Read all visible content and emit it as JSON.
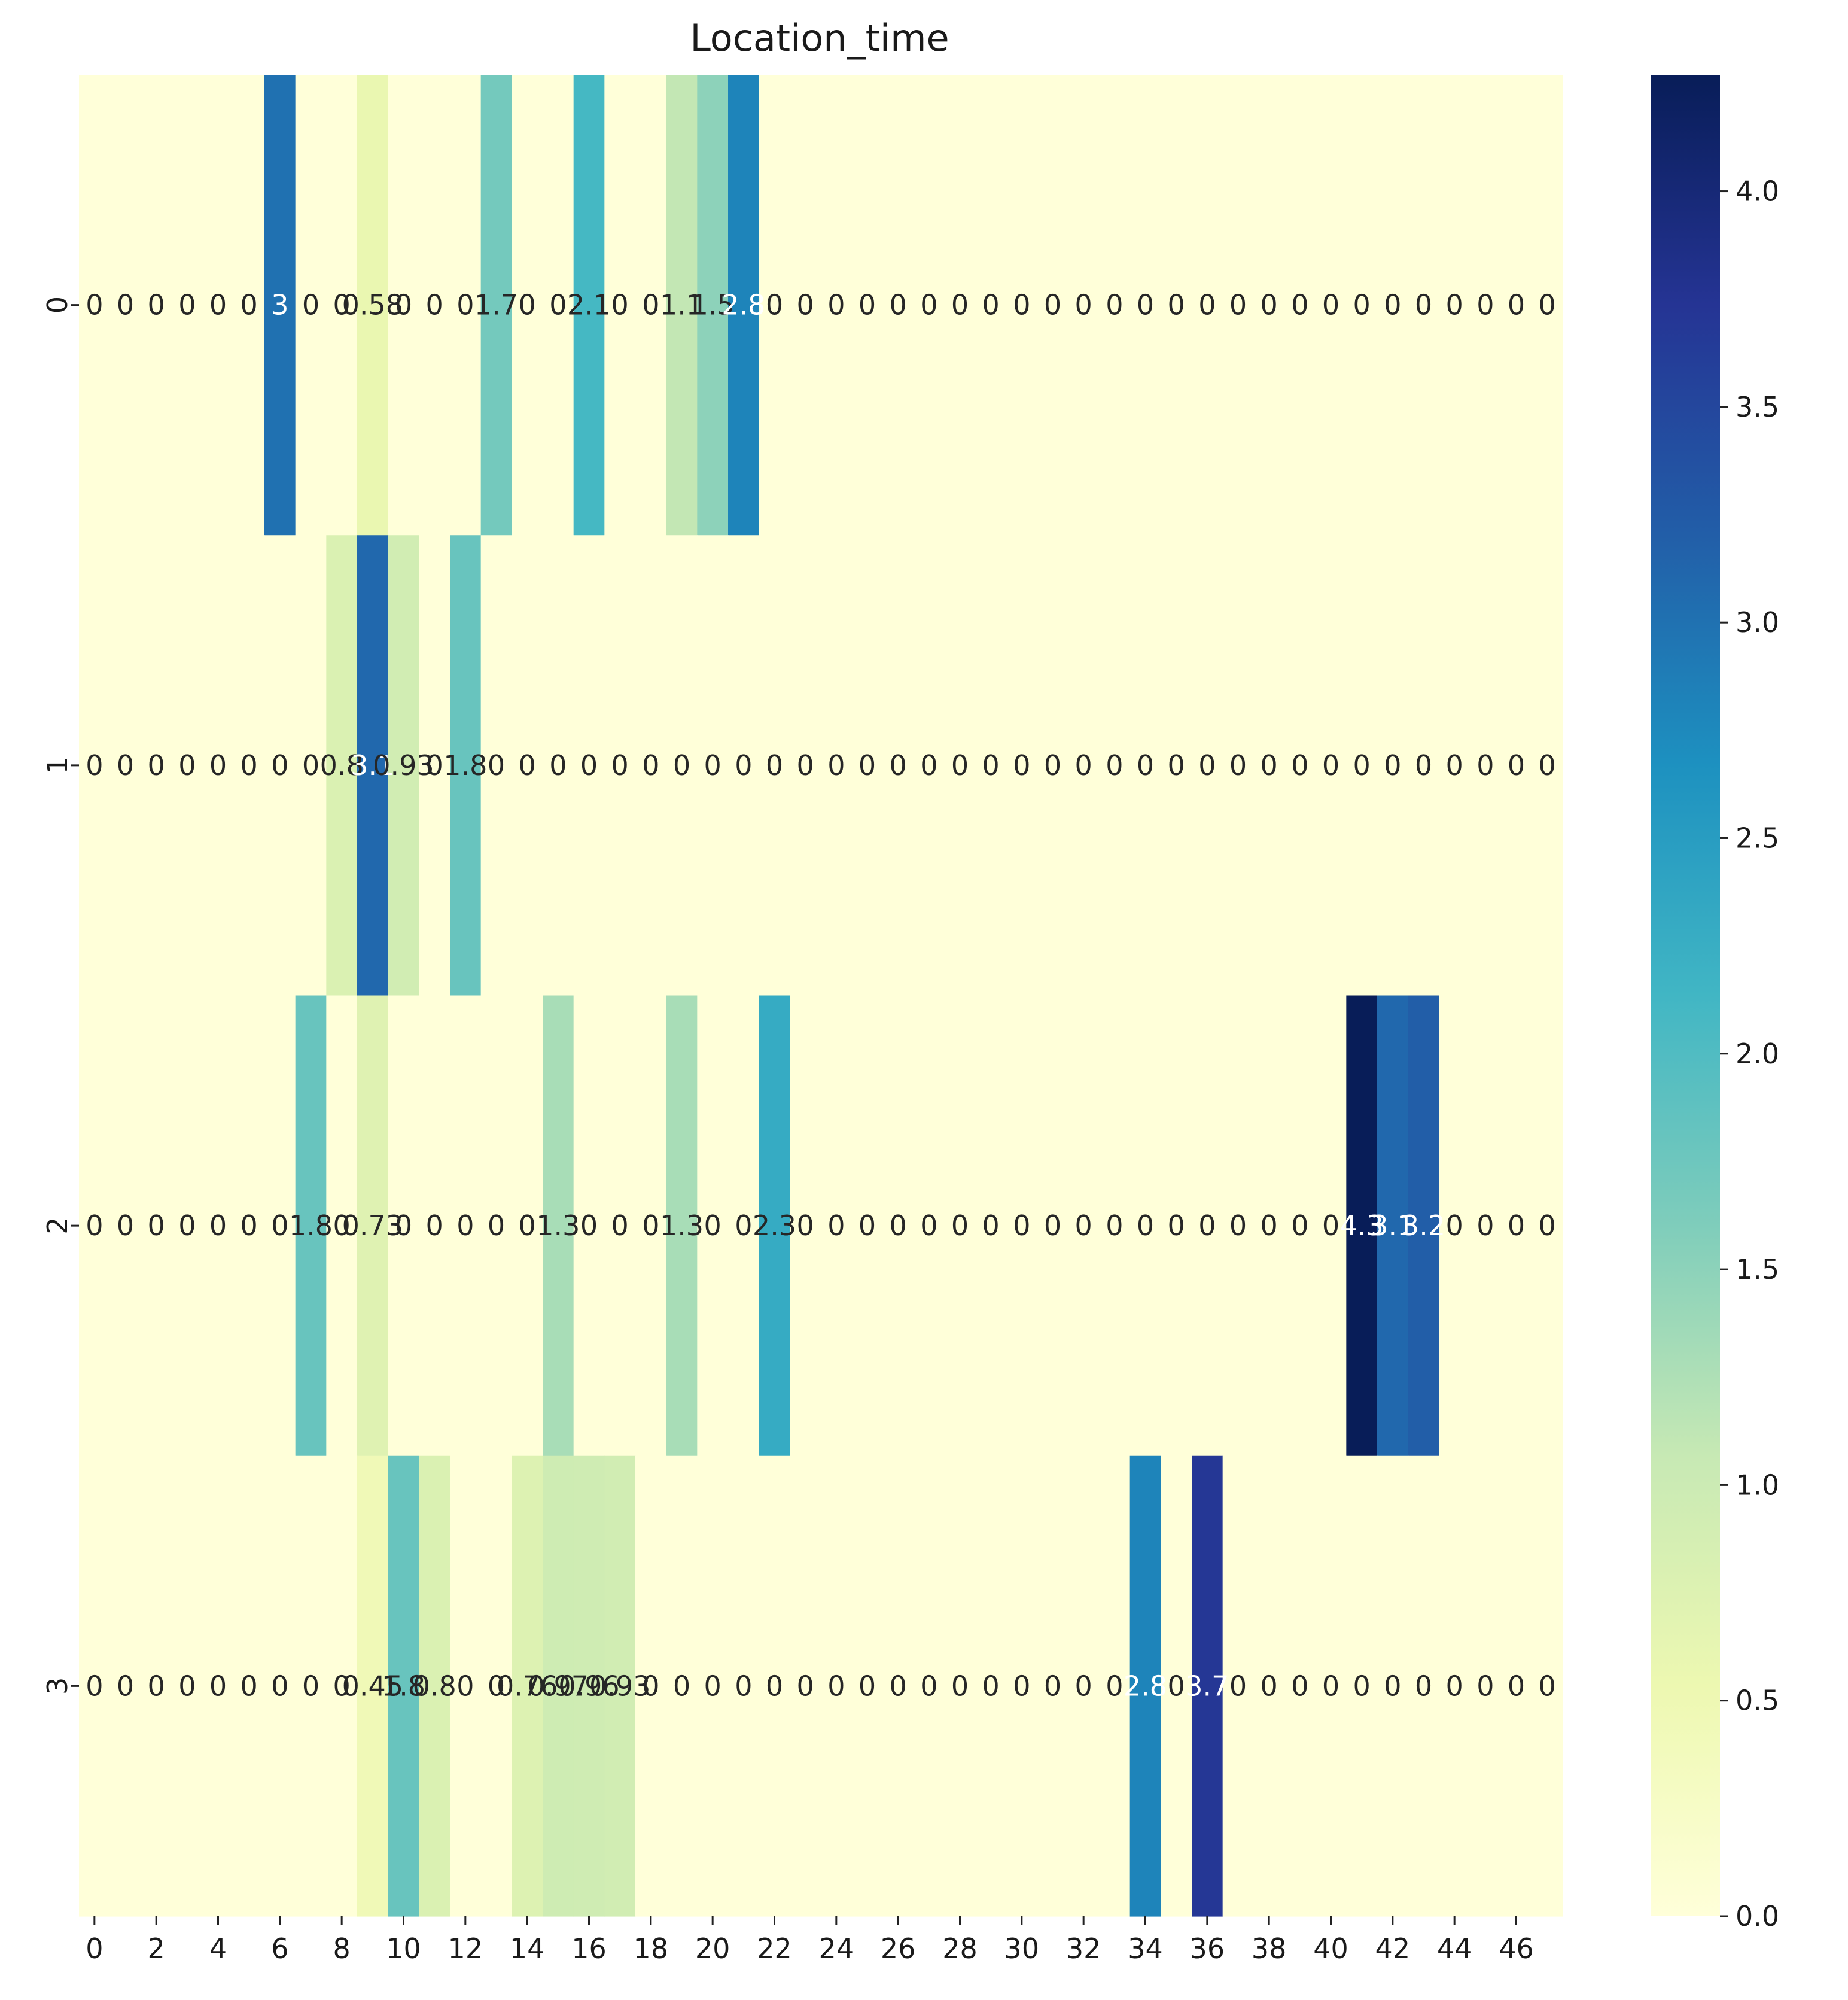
{
  "chart_data": {
    "type": "heatmap",
    "title": "Location_time",
    "xlabel": "",
    "ylabel": "",
    "colormap": "YlGnBu",
    "colorbar_range": [
      0,
      4.27
    ],
    "colorbar_ticks": [
      "0.0",
      "0.5",
      "1.0",
      "1.5",
      "2.0",
      "2.5",
      "3.0",
      "3.5",
      "4.0"
    ],
    "colorbar_tick_values": [
      0,
      0.5,
      1.0,
      1.5,
      2.0,
      2.5,
      3.0,
      3.5,
      4.0
    ],
    "x_tick_labels": [
      "0",
      "2",
      "4",
      "6",
      "8",
      "10",
      "12",
      "14",
      "16",
      "18",
      "20",
      "22",
      "24",
      "26",
      "28",
      "30",
      "32",
      "34",
      "36",
      "38",
      "40",
      "42",
      "44",
      "46"
    ],
    "x_tick_values": [
      0,
      2,
      4,
      6,
      8,
      10,
      12,
      14,
      16,
      18,
      20,
      22,
      24,
      26,
      28,
      30,
      32,
      34,
      36,
      38,
      40,
      42,
      44,
      46
    ],
    "y_tick_labels": [
      "0",
      "1",
      "2",
      "3"
    ],
    "columns": 48,
    "rows": [
      {
        "values": [
          0,
          0,
          0,
          0,
          0,
          0,
          3,
          0,
          0,
          0.58,
          0,
          0,
          0,
          1.7,
          0,
          0,
          2.1,
          0,
          0,
          1.1,
          1.5,
          2.8,
          0,
          0,
          0,
          0,
          0,
          0,
          0,
          0,
          0,
          0,
          0,
          0,
          0,
          0,
          0,
          0,
          0,
          0,
          0,
          0,
          0,
          0,
          0,
          0,
          0,
          0
        ],
        "labels": [
          "0",
          "0",
          "0",
          "0",
          "0",
          "0",
          "3",
          "0",
          "0",
          "0.58",
          "0",
          "0",
          "0",
          "1.7",
          "0",
          "0",
          "2.1",
          "0",
          "0",
          "1.1",
          "1.5",
          "2.8",
          "0",
          "0",
          "0",
          "0",
          "0",
          "0",
          "0",
          "0",
          "0",
          "0",
          "0",
          "0",
          "0",
          "0",
          "0",
          "0",
          "0",
          "0",
          "0",
          "0",
          "0",
          "0",
          "0",
          "0",
          "0",
          "0"
        ]
      },
      {
        "values": [
          0,
          0,
          0,
          0,
          0,
          0,
          0,
          0,
          0.8,
          3.1,
          0.93,
          0,
          1.8,
          0,
          0,
          0,
          0,
          0,
          0,
          0,
          0,
          0,
          0,
          0,
          0,
          0,
          0,
          0,
          0,
          0,
          0,
          0,
          0,
          0,
          0,
          0,
          0,
          0,
          0,
          0,
          0,
          0,
          0,
          0,
          0,
          0,
          0,
          0
        ],
        "labels": [
          "0",
          "0",
          "0",
          "0",
          "0",
          "0",
          "0",
          "0",
          "0.8",
          "3.1",
          "0.93",
          "0",
          "1.8",
          "0",
          "0",
          "0",
          "0",
          "0",
          "0",
          "0",
          "0",
          "0",
          "0",
          "0",
          "0",
          "0",
          "0",
          "0",
          "0",
          "0",
          "0",
          "0",
          "0",
          "0",
          "0",
          "0",
          "0",
          "0",
          "0",
          "0",
          "0",
          "0",
          "0",
          "0",
          "0",
          "0",
          "0",
          "0"
        ]
      },
      {
        "values": [
          0,
          0,
          0,
          0,
          0,
          0,
          0,
          1.8,
          0,
          0.73,
          0,
          0,
          0,
          0,
          0,
          1.3,
          0,
          0,
          0,
          1.3,
          0,
          0,
          2.3,
          0,
          0,
          0,
          0,
          0,
          0,
          0,
          0,
          0,
          0,
          0,
          0,
          0,
          0,
          0,
          0,
          0,
          0,
          4.3,
          3.1,
          3.2,
          0,
          0,
          0,
          0
        ],
        "labels": [
          "0",
          "0",
          "0",
          "0",
          "0",
          "0",
          "0",
          "1.8",
          "0",
          "0.73",
          "0",
          "0",
          "0",
          "0",
          "0",
          "1.3",
          "0",
          "0",
          "0",
          "1.3",
          "0",
          "0",
          "2.3",
          "0",
          "0",
          "0",
          "0",
          "0",
          "0",
          "0",
          "0",
          "0",
          "0",
          "0",
          "0",
          "0",
          "0",
          "0",
          "0",
          "0",
          "0",
          "4.3",
          "3.1",
          "3.2",
          "0",
          "0",
          "0",
          "0"
        ]
      },
      {
        "values": [
          0,
          0,
          0,
          0,
          0,
          0,
          0,
          0,
          0,
          0.45,
          1.8,
          0.8,
          0,
          0,
          0.76,
          0.97,
          0.96,
          0.93,
          0,
          0,
          0,
          0,
          0,
          0,
          0,
          0,
          0,
          0,
          0,
          0,
          0,
          0,
          0,
          0,
          2.8,
          0,
          3.7,
          0,
          0,
          0,
          0,
          0,
          0,
          0,
          0,
          0,
          0,
          0
        ],
        "labels": [
          "0",
          "0",
          "0",
          "0",
          "0",
          "0",
          "0",
          "0",
          "0",
          "0.45",
          "1.8",
          "0.8",
          "0",
          "0",
          "0.76",
          "0.97",
          "0.96",
          "0.93",
          "0",
          "0",
          "0",
          "0",
          "0",
          "0",
          "0",
          "0",
          "0",
          "0",
          "0",
          "0",
          "0",
          "0",
          "0",
          "0",
          "2.8",
          "0",
          "3.7",
          "0",
          "0",
          "0",
          "0",
          "0",
          "0",
          "0",
          "0",
          "0",
          "0",
          "0"
        ]
      }
    ]
  }
}
